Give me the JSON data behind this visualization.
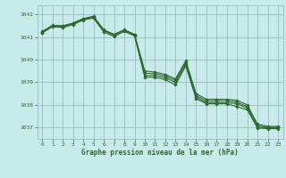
{
  "title": "",
  "xlabel": "Graphe pression niveau de la mer (hPa)",
  "ylabel": "",
  "background_color": "#c8eaea",
  "grid_color": "#8fb8b8",
  "line_color": "#2d6a2d",
  "marker_color": "#2d6a2d",
  "xlim": [
    -0.5,
    23.5
  ],
  "ylim": [
    1036.5,
    1042.4
  ],
  "yticks": [
    1037,
    1038,
    1039,
    1040,
    1041,
    1042
  ],
  "xticks": [
    0,
    1,
    2,
    3,
    4,
    5,
    6,
    7,
    8,
    9,
    10,
    11,
    12,
    13,
    14,
    15,
    16,
    17,
    18,
    19,
    20,
    21,
    22,
    23
  ],
  "series": [
    [
      1041.2,
      1041.5,
      1041.5,
      1041.6,
      1041.8,
      1041.85,
      1041.3,
      1041.1,
      1041.3,
      1041.1,
      1039.3,
      1039.3,
      1039.2,
      1039.0,
      1039.8,
      1038.35,
      1038.1,
      1038.1,
      1038.1,
      1038.05,
      1037.85,
      1037.0,
      1037.0,
      1037.0
    ],
    [
      1041.25,
      1041.52,
      1041.48,
      1041.62,
      1041.82,
      1041.92,
      1041.32,
      1041.12,
      1041.32,
      1041.12,
      1039.5,
      1039.45,
      1039.35,
      1039.15,
      1039.95,
      1038.5,
      1038.25,
      1038.25,
      1038.25,
      1038.2,
      1038.0,
      1037.15,
      1037.05,
      1037.05
    ],
    [
      1041.22,
      1041.48,
      1041.44,
      1041.58,
      1041.78,
      1041.88,
      1041.28,
      1041.08,
      1041.28,
      1041.08,
      1039.4,
      1039.38,
      1039.28,
      1039.08,
      1039.88,
      1038.42,
      1038.18,
      1038.18,
      1038.18,
      1038.12,
      1037.92,
      1037.08,
      1037.0,
      1037.0
    ],
    [
      1041.18,
      1041.46,
      1041.42,
      1041.55,
      1041.75,
      1041.84,
      1041.22,
      1041.02,
      1041.25,
      1041.05,
      1039.22,
      1039.22,
      1039.12,
      1038.88,
      1039.72,
      1038.28,
      1038.05,
      1038.05,
      1038.05,
      1037.92,
      1037.78,
      1036.98,
      1036.95,
      1036.95
    ]
  ]
}
